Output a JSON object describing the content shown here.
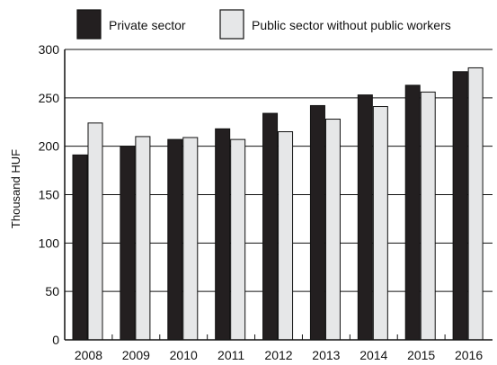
{
  "chart_data": {
    "type": "bar",
    "categories": [
      "2008",
      "2009",
      "2010",
      "2011",
      "2012",
      "2013",
      "2014",
      "2015",
      "2016"
    ],
    "series": [
      {
        "name": "Private sector",
        "values": [
          191,
          200,
          207,
          218,
          234,
          242,
          253,
          263,
          277
        ],
        "color": "#231f20"
      },
      {
        "name": "Public sector without public workers",
        "values": [
          224,
          210,
          209,
          207,
          215,
          228,
          241,
          256,
          281
        ],
        "color": "#e6e7e8"
      }
    ],
    "title": "",
    "xlabel": "",
    "ylabel": "Thousand HUF",
    "ylim": [
      0,
      300
    ],
    "yticks": [
      0,
      50,
      100,
      150,
      200,
      250,
      300
    ],
    "grid": true,
    "legend_position": "top"
  }
}
